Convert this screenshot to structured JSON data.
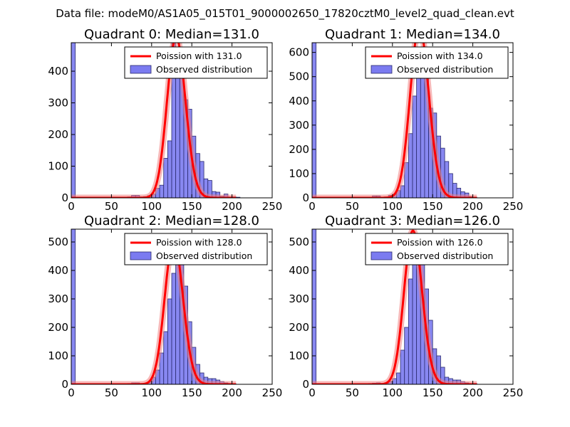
{
  "figure": {
    "suptitle": "Data file: modeM0/AS1A05_015T01_9000002650_17820cztM0_level2_quad_clean.evt"
  },
  "colors": {
    "hist_fill": "#7b7bf0",
    "hist_edge": "#2b2b6f",
    "poisson_line": "#ff0000",
    "poisson_glow": "#f08080"
  },
  "chart_data": [
    {
      "type": "bar",
      "title": "Quadrant 0: Median=131.0",
      "median": 131.0,
      "xlim": [
        0,
        250
      ],
      "ylim": [
        0,
        490
      ],
      "xticks": [
        0,
        50,
        100,
        150,
        200,
        250
      ],
      "yticks": [
        0,
        100,
        200,
        300,
        400
      ],
      "legend_poisson": "Poission with 131.0",
      "legend_observed": "Observed distribution",
      "bins": [
        {
          "x": 0,
          "h": 490
        },
        {
          "x": 70,
          "h": 3
        },
        {
          "x": 75,
          "h": 8
        },
        {
          "x": 80,
          "h": 8
        },
        {
          "x": 85,
          "h": 3
        },
        {
          "x": 90,
          "h": 4
        },
        {
          "x": 95,
          "h": 7
        },
        {
          "x": 100,
          "h": 12
        },
        {
          "x": 105,
          "h": 30
        },
        {
          "x": 110,
          "h": 40
        },
        {
          "x": 115,
          "h": 125
        },
        {
          "x": 120,
          "h": 180
        },
        {
          "x": 125,
          "h": 490
        },
        {
          "x": 130,
          "h": 465
        },
        {
          "x": 135,
          "h": 410
        },
        {
          "x": 140,
          "h": 310
        },
        {
          "x": 145,
          "h": 280
        },
        {
          "x": 150,
          "h": 195
        },
        {
          "x": 155,
          "h": 140
        },
        {
          "x": 160,
          "h": 115
        },
        {
          "x": 165,
          "h": 60
        },
        {
          "x": 170,
          "h": 55
        },
        {
          "x": 175,
          "h": 20
        },
        {
          "x": 180,
          "h": 18
        },
        {
          "x": 185,
          "h": 5
        },
        {
          "x": 190,
          "h": 12
        },
        {
          "x": 195,
          "h": 3
        },
        {
          "x": 200,
          "h": 3
        },
        {
          "x": 205,
          "h": 2
        }
      ]
    },
    {
      "type": "bar",
      "title": "Quadrant 1: Median=134.0",
      "median": 134.0,
      "xlim": [
        0,
        250
      ],
      "ylim": [
        0,
        640
      ],
      "xticks": [
        0,
        50,
        100,
        150,
        200,
        250
      ],
      "yticks": [
        0,
        100,
        200,
        300,
        400,
        500,
        600
      ],
      "legend_poisson": "Poission with 134.0",
      "legend_observed": "Observed distribution",
      "bins": [
        {
          "x": 0,
          "h": 640
        },
        {
          "x": 70,
          "h": 3
        },
        {
          "x": 75,
          "h": 8
        },
        {
          "x": 80,
          "h": 8
        },
        {
          "x": 85,
          "h": 3
        },
        {
          "x": 90,
          "h": 4
        },
        {
          "x": 95,
          "h": 10
        },
        {
          "x": 100,
          "h": 15
        },
        {
          "x": 105,
          "h": 30
        },
        {
          "x": 110,
          "h": 50
        },
        {
          "x": 115,
          "h": 145
        },
        {
          "x": 120,
          "h": 265
        },
        {
          "x": 125,
          "h": 420
        },
        {
          "x": 130,
          "h": 570
        },
        {
          "x": 135,
          "h": 600
        },
        {
          "x": 140,
          "h": 520
        },
        {
          "x": 145,
          "h": 370
        },
        {
          "x": 150,
          "h": 350
        },
        {
          "x": 155,
          "h": 255
        },
        {
          "x": 160,
          "h": 205
        },
        {
          "x": 165,
          "h": 150
        },
        {
          "x": 170,
          "h": 100
        },
        {
          "x": 175,
          "h": 60
        },
        {
          "x": 180,
          "h": 40
        },
        {
          "x": 185,
          "h": 25
        },
        {
          "x": 190,
          "h": 20
        },
        {
          "x": 195,
          "h": 5
        },
        {
          "x": 200,
          "h": 3
        }
      ]
    },
    {
      "type": "bar",
      "title": "Quadrant 2: Median=128.0",
      "median": 128.0,
      "xlim": [
        0,
        250
      ],
      "ylim": [
        0,
        545
      ],
      "xticks": [
        0,
        50,
        100,
        150,
        200,
        250
      ],
      "yticks": [
        0,
        100,
        200,
        300,
        400,
        500
      ],
      "legend_poisson": "Poission with 128.0",
      "legend_observed": "Observed distribution",
      "bins": [
        {
          "x": 0,
          "h": 545
        },
        {
          "x": 70,
          "h": 3
        },
        {
          "x": 75,
          "h": 5
        },
        {
          "x": 80,
          "h": 5
        },
        {
          "x": 85,
          "h": 3
        },
        {
          "x": 90,
          "h": 4
        },
        {
          "x": 95,
          "h": 8
        },
        {
          "x": 100,
          "h": 25
        },
        {
          "x": 105,
          "h": 50
        },
        {
          "x": 110,
          "h": 110
        },
        {
          "x": 115,
          "h": 185
        },
        {
          "x": 120,
          "h": 300
        },
        {
          "x": 125,
          "h": 390
        },
        {
          "x": 130,
          "h": 520
        },
        {
          "x": 135,
          "h": 445
        },
        {
          "x": 140,
          "h": 345
        },
        {
          "x": 145,
          "h": 220
        },
        {
          "x": 150,
          "h": 130
        },
        {
          "x": 155,
          "h": 70
        },
        {
          "x": 160,
          "h": 40
        },
        {
          "x": 165,
          "h": 25
        },
        {
          "x": 170,
          "h": 20
        },
        {
          "x": 175,
          "h": 20
        },
        {
          "x": 180,
          "h": 15
        },
        {
          "x": 185,
          "h": 10
        },
        {
          "x": 190,
          "h": 5
        },
        {
          "x": 195,
          "h": 3
        },
        {
          "x": 200,
          "h": 2
        }
      ]
    },
    {
      "type": "bar",
      "title": "Quadrant 3: Median=126.0",
      "median": 126.0,
      "xlim": [
        0,
        250
      ],
      "ylim": [
        0,
        545
      ],
      "xticks": [
        0,
        50,
        100,
        150,
        200,
        250
      ],
      "yticks": [
        0,
        100,
        200,
        300,
        400,
        500
      ],
      "legend_poisson": "Poission with 126.0",
      "legend_observed": "Observed distribution",
      "bins": [
        {
          "x": 0,
          "h": 545
        },
        {
          "x": 70,
          "h": 3
        },
        {
          "x": 75,
          "h": 4
        },
        {
          "x": 80,
          "h": 5
        },
        {
          "x": 85,
          "h": 3
        },
        {
          "x": 90,
          "h": 5
        },
        {
          "x": 95,
          "h": 10
        },
        {
          "x": 100,
          "h": 20
        },
        {
          "x": 105,
          "h": 40
        },
        {
          "x": 110,
          "h": 120
        },
        {
          "x": 115,
          "h": 200
        },
        {
          "x": 120,
          "h": 370
        },
        {
          "x": 125,
          "h": 430
        },
        {
          "x": 130,
          "h": 515
        },
        {
          "x": 135,
          "h": 465
        },
        {
          "x": 140,
          "h": 335
        },
        {
          "x": 145,
          "h": 225
        },
        {
          "x": 150,
          "h": 125
        },
        {
          "x": 155,
          "h": 100
        },
        {
          "x": 160,
          "h": 60
        },
        {
          "x": 165,
          "h": 25
        },
        {
          "x": 170,
          "h": 20
        },
        {
          "x": 175,
          "h": 15
        },
        {
          "x": 180,
          "h": 15
        },
        {
          "x": 185,
          "h": 10
        },
        {
          "x": 190,
          "h": 5
        },
        {
          "x": 195,
          "h": 3
        },
        {
          "x": 200,
          "h": 3
        }
      ]
    }
  ]
}
